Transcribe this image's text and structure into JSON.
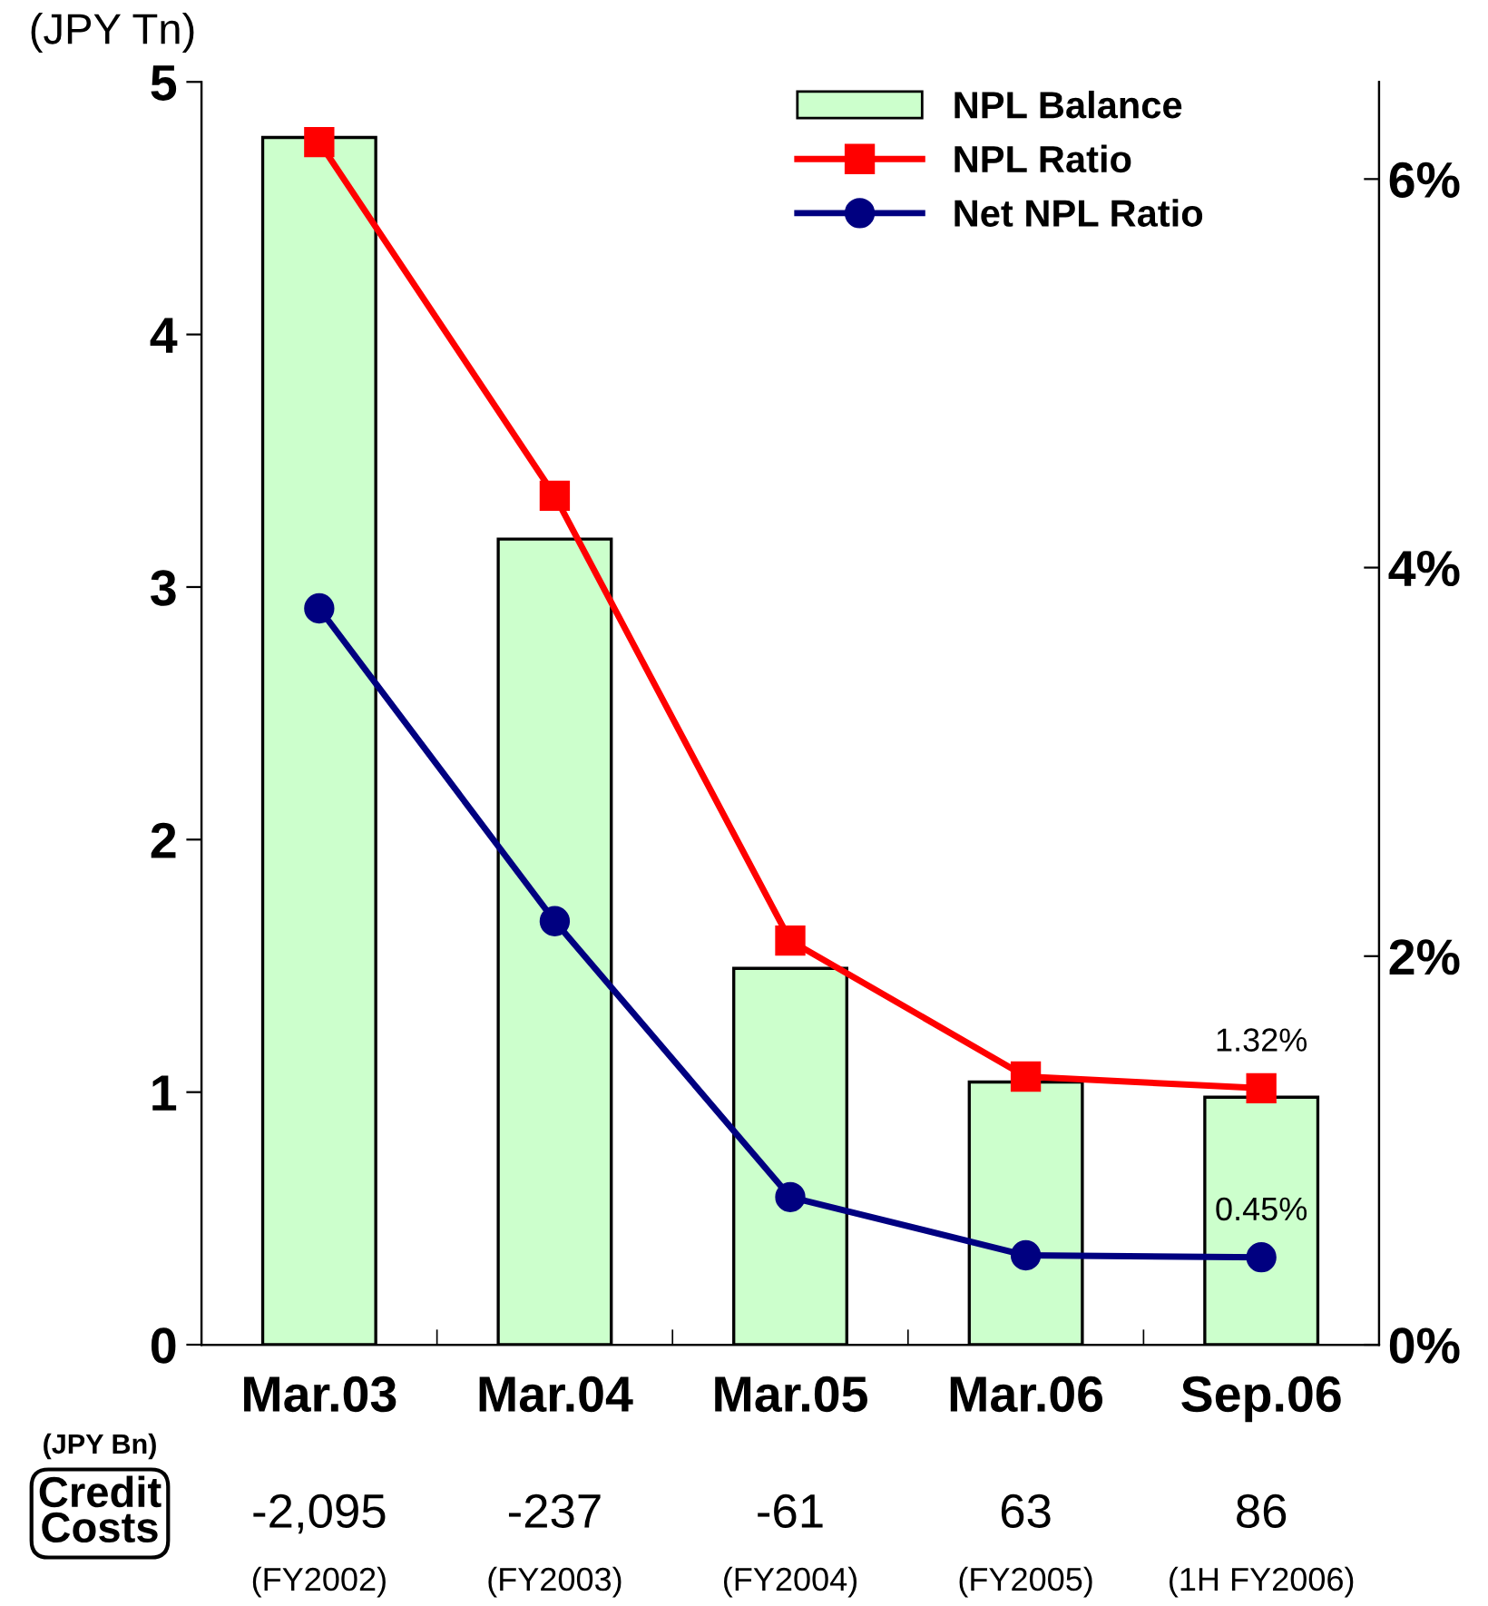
{
  "chart_data": {
    "type": "bar",
    "categories": [
      "Mar.03",
      "Mar.04",
      "Mar.05",
      "Mar.06",
      "Sep.06"
    ],
    "ylabel": "(JPY Tn)",
    "ylim": [
      0,
      5
    ],
    "yticks": [
      0,
      1,
      2,
      3,
      4,
      5
    ],
    "y2lim": [
      0,
      6.5
    ],
    "y2ticks": [
      {
        "value": 0,
        "label": "0%"
      },
      {
        "value": 2,
        "label": "2%"
      },
      {
        "value": 4,
        "label": "4%"
      },
      {
        "value": 6,
        "label": "6%"
      }
    ],
    "grid": false,
    "legend": "top right",
    "series": [
      {
        "name": "NPL Balance",
        "color": "#ccffcc",
        "values": [
          4.78,
          3.19,
          1.49,
          1.04,
          0.98
        ]
      },
      {
        "name": "NPL Ratio",
        "type": "line",
        "axis": "y2",
        "color": "#ff0000",
        "marker": "square",
        "values": [
          6.19,
          4.37,
          2.08,
          1.38,
          1.32
        ],
        "value_labels": [
          null,
          null,
          null,
          null,
          "1.32%"
        ]
      },
      {
        "name": "Net NPL Ratio",
        "type": "line",
        "axis": "y2",
        "color": "#000080",
        "marker": "circle",
        "values": [
          3.79,
          2.18,
          0.76,
          0.46,
          0.45
        ],
        "value_labels": [
          null,
          null,
          null,
          null,
          "0.45%"
        ]
      }
    ],
    "annotations": [
      "(JPY Bn)",
      "Credit\nCosts",
      "-2,095",
      "-237",
      "-61",
      "63",
      "86",
      "(FY2002)",
      "(FY2003)",
      "(FY2004)",
      "(FY2005)",
      "(1H FY2006)"
    ]
  }
}
